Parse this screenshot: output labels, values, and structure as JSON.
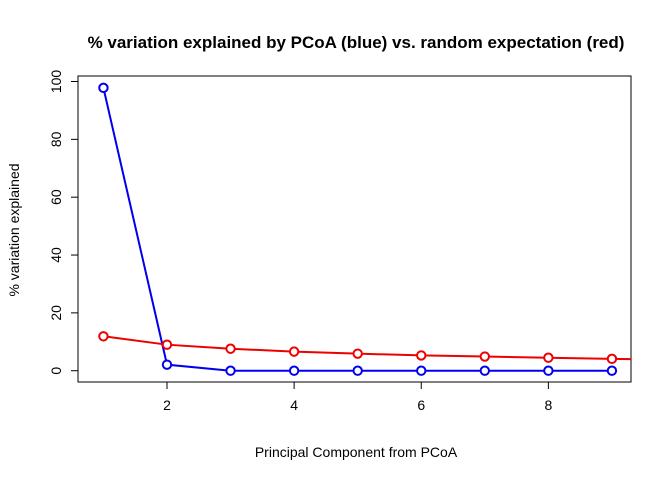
{
  "chart_data": {
    "type": "line",
    "title": "% variation explained by PCoA (blue) vs. random expectation (red)",
    "xlabel": "Principal Component from PCoA",
    "ylabel": "% variation explained",
    "xlim": [
      0.6,
      9.3
    ],
    "ylim": [
      -3.9,
      101.9
    ],
    "xticks": [
      2,
      4,
      6,
      8
    ],
    "yticks": [
      0,
      20,
      40,
      60,
      80,
      100
    ],
    "grid": false,
    "series": [
      {
        "color": "#0000ee",
        "x": [
          1,
          2,
          3,
          4,
          5,
          6,
          7,
          8,
          9
        ],
        "values": [
          97.8,
          2.1,
          0.0,
          0.0,
          0.0,
          0.0,
          0.0,
          0.0,
          0.0
        ]
      },
      {
        "color": "#ee0000",
        "x": [
          1,
          2,
          3,
          4,
          5,
          6,
          7,
          8,
          9,
          10
        ],
        "values": [
          11.9,
          9.0,
          7.6,
          6.6,
          5.9,
          5.3,
          4.9,
          4.5,
          4.1,
          3.8
        ]
      }
    ]
  }
}
